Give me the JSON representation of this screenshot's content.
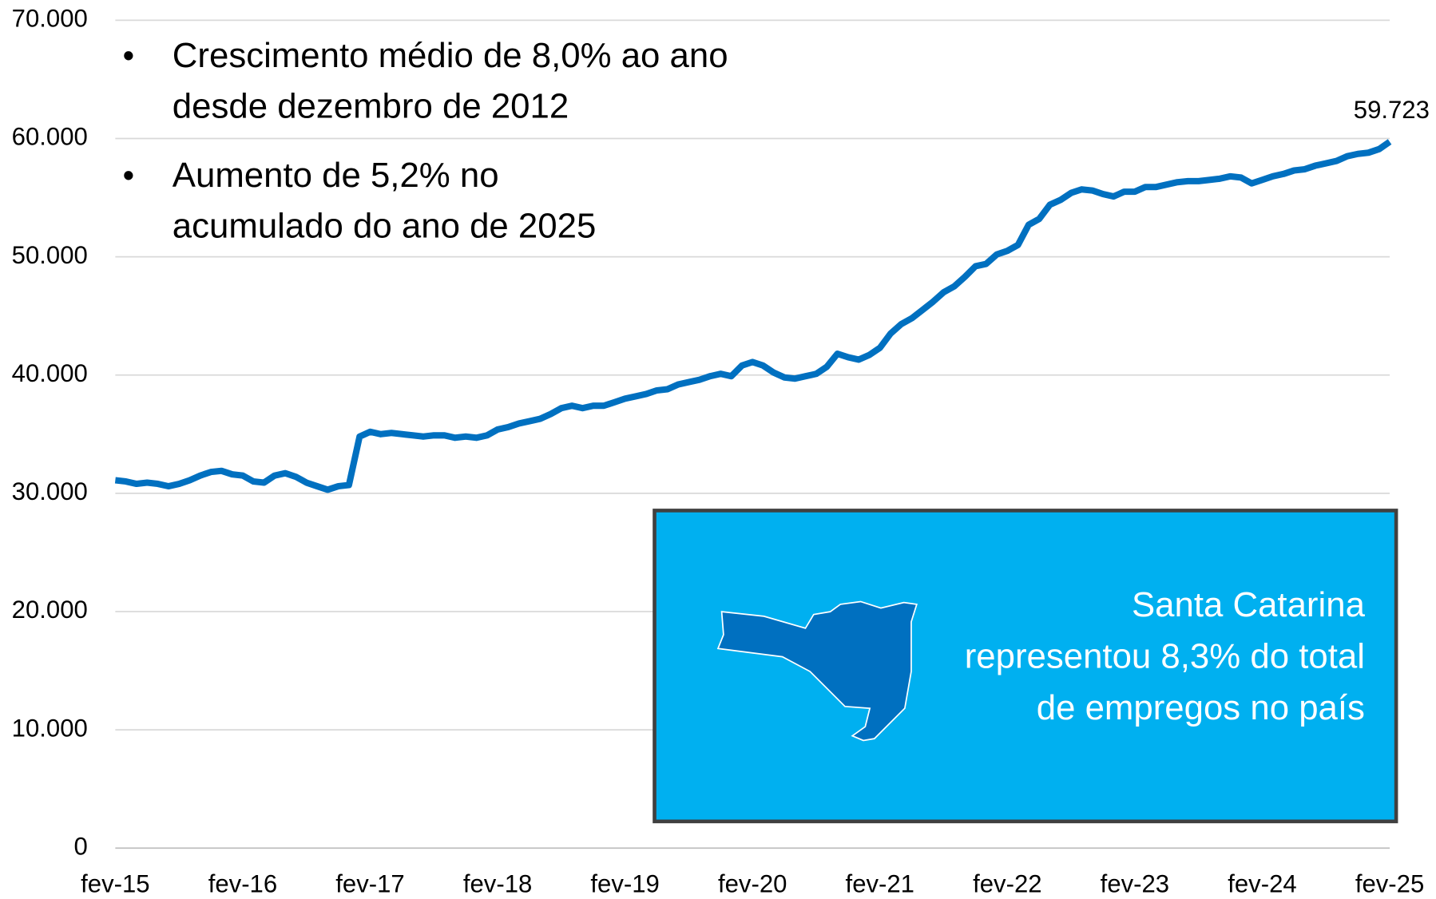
{
  "chart_data": {
    "type": "line",
    "categories": [
      "fev-15",
      null,
      null,
      null,
      null,
      null,
      null,
      null,
      null,
      null,
      null,
      null,
      "fev-16",
      null,
      null,
      null,
      null,
      null,
      null,
      null,
      null,
      null,
      null,
      null,
      "fev-17",
      null,
      null,
      null,
      null,
      null,
      null,
      null,
      null,
      null,
      null,
      null,
      "fev-18",
      null,
      null,
      null,
      null,
      null,
      null,
      null,
      null,
      null,
      null,
      null,
      "fev-19",
      null,
      null,
      null,
      null,
      null,
      null,
      null,
      null,
      null,
      null,
      null,
      "fev-20",
      null,
      null,
      null,
      null,
      null,
      null,
      null,
      null,
      null,
      null,
      null,
      "fev-21",
      null,
      null,
      null,
      null,
      null,
      null,
      null,
      null,
      null,
      null,
      null,
      "fev-22",
      null,
      null,
      null,
      null,
      null,
      null,
      null,
      null,
      null,
      null,
      null,
      "fev-23",
      null,
      null,
      null,
      null,
      null,
      null,
      null,
      null,
      null,
      null,
      null,
      "fev-24",
      null,
      null,
      null,
      null,
      null,
      null,
      null,
      null,
      null,
      null,
      null,
      "fev-25"
    ],
    "values": [
      31100,
      31000,
      30800,
      30900,
      30800,
      30600,
      30800,
      31100,
      31500,
      31800,
      31900,
      31600,
      31500,
      31000,
      30900,
      31500,
      31700,
      31400,
      30900,
      30600,
      30300,
      30600,
      30700,
      34800,
      35200,
      35000,
      35100,
      35000,
      34900,
      34800,
      34900,
      34900,
      34700,
      34800,
      34700,
      34900,
      35400,
      35600,
      35900,
      36100,
      36300,
      36700,
      37200,
      37400,
      37200,
      37400,
      37400,
      37700,
      38000,
      38200,
      38400,
      38700,
      38800,
      39200,
      39400,
      39600,
      39900,
      40100,
      39900,
      40800,
      41100,
      40800,
      40200,
      39800,
      39700,
      39900,
      40100,
      40700,
      41800,
      41500,
      41300,
      41700,
      42300,
      43500,
      44300,
      44800,
      45500,
      46200,
      47000,
      47500,
      48300,
      49200,
      49400,
      50200,
      50500,
      51000,
      52700,
      53200,
      54400,
      54800,
      55400,
      55700,
      55600,
      55300,
      55100,
      55500,
      55500,
      55900,
      55900,
      56100,
      56300,
      56400,
      56400,
      56500,
      56600,
      56800,
      56700,
      56200,
      56500,
      56800,
      57000,
      57300,
      57400,
      57700,
      57900,
      58100,
      58500,
      58700,
      58800,
      59100,
      59723
    ],
    "value_labels": [
      null,
      null,
      null,
      null,
      null,
      null,
      null,
      null,
      null,
      null,
      null,
      null,
      null,
      null,
      null,
      null,
      null,
      null,
      null,
      null,
      null,
      null,
      null,
      null,
      null,
      null,
      null,
      null,
      null,
      null,
      null,
      null,
      null,
      null,
      null,
      null,
      null,
      null,
      null,
      null,
      null,
      null,
      null,
      null,
      null,
      null,
      null,
      null,
      null,
      null,
      null,
      null,
      null,
      null,
      null,
      null,
      null,
      null,
      null,
      null,
      null,
      null,
      null,
      null,
      null,
      null,
      null,
      null,
      null,
      null,
      null,
      null,
      null,
      null,
      null,
      null,
      null,
      null,
      null,
      null,
      null,
      null,
      null,
      null,
      null,
      null,
      null,
      null,
      null,
      null,
      null,
      null,
      null,
      null,
      null,
      null,
      null,
      null,
      null,
      null,
      null,
      null,
      null,
      null,
      null,
      null,
      null,
      null,
      null,
      null,
      null,
      null,
      null,
      null,
      null,
      null,
      null,
      null,
      null,
      null,
      "59.723"
    ],
    "color": "#0070c0",
    "ylim": [
      0,
      70000
    ],
    "yticks": [
      0,
      {
        "value": 10000,
        "label": "10.000"
      },
      {
        "value": 20000,
        "label": "20.000"
      },
      {
        "value": 30000,
        "label": "30.000"
      },
      {
        "value": 40000,
        "label": "40.000"
      },
      {
        "value": 50000,
        "label": "50.000"
      },
      {
        "value": 60000,
        "label": "60.000"
      },
      {
        "value": 70000,
        "label": "70.000"
      }
    ],
    "grid": true,
    "bullets": [
      [
        "Crescimento médio de 8,0% ao ano",
        "desde dezembro de 2012"
      ],
      [
        "Aumento de 5,2% no",
        "acumulado do ano de 2025"
      ]
    ],
    "callout": [
      "Santa Catarina",
      "representou 8,3% do total",
      "de empregos no país"
    ]
  }
}
